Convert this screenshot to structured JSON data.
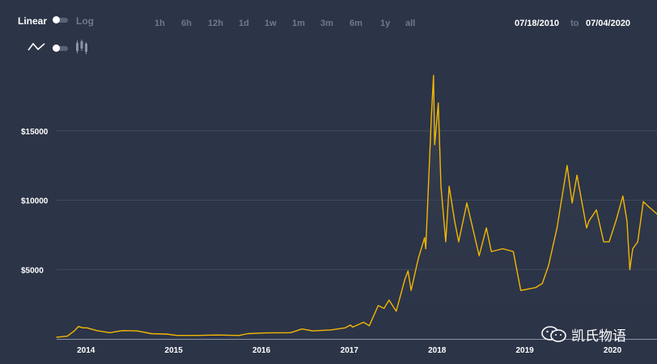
{
  "toolbar": {
    "scale_linear": "Linear",
    "scale_log": "Log",
    "ranges": [
      "1h",
      "6h",
      "12h",
      "1d",
      "1w",
      "1m",
      "3m",
      "6m",
      "1y",
      "all"
    ],
    "date_from": "07/18/2010",
    "date_to_word": "to",
    "date_to": "07/04/2020"
  },
  "watermark": {
    "text": "凯氏物语"
  },
  "colors": {
    "background": "#2c3447",
    "line": "#f2b705",
    "grid": "#424a5e",
    "muted": "#6f7890"
  },
  "chart_data": {
    "type": "line",
    "y_scale": "linear",
    "grid": true,
    "ylim": [
      0,
      20000
    ],
    "y_ticks": [
      5000,
      10000,
      15000
    ],
    "y_tick_labels": [
      "$5000",
      "$10000",
      "$15000"
    ],
    "x_tick_labels": [
      "2014",
      "2015",
      "2016",
      "2017",
      "2018",
      "2019",
      "2020"
    ],
    "x_ticks": [
      "2014-01-01",
      "2015-01-01",
      "2016-01-01",
      "2017-01-01",
      "2018-01-01",
      "2019-01-01",
      "2020-01-01"
    ],
    "xlim": [
      "2013-09-01",
      "2020-07-04"
    ],
    "series": [
      {
        "x": [
          "2013-09-01",
          "2013-10-15",
          "2013-11-15",
          "2013-12-01",
          "2013-12-18",
          "2014-01-05",
          "2014-02-15",
          "2014-04-10",
          "2014-06-01",
          "2014-08-01",
          "2014-10-01",
          "2014-12-01",
          "2015-01-15",
          "2015-04-01",
          "2015-07-01",
          "2015-10-01",
          "2015-11-05",
          "2016-01-15",
          "2016-05-01",
          "2016-06-18",
          "2016-08-01",
          "2016-10-15",
          "2016-12-15",
          "2017-01-05",
          "2017-01-15",
          "2017-03-01",
          "2017-03-25",
          "2017-05-01",
          "2017-05-25",
          "2017-06-15",
          "2017-07-15",
          "2017-08-20",
          "2017-09-02",
          "2017-09-15",
          "2017-10-15",
          "2017-11-10",
          "2017-11-15",
          "2017-12-08",
          "2017-12-17",
          "2017-12-22",
          "2018-01-06",
          "2018-01-17",
          "2018-02-06",
          "2018-02-20",
          "2018-03-15",
          "2018-04-01",
          "2018-05-05",
          "2018-06-25",
          "2018-07-25",
          "2018-08-15",
          "2018-10-01",
          "2018-11-14",
          "2018-12-15",
          "2019-01-15",
          "2019-02-15",
          "2019-03-15",
          "2019-04-10",
          "2019-05-15",
          "2019-06-26",
          "2019-07-17",
          "2019-08-06",
          "2019-09-15",
          "2019-09-25",
          "2019-10-26",
          "2019-11-25",
          "2019-12-18",
          "2020-01-15",
          "2020-02-13",
          "2020-03-01",
          "2020-03-13",
          "2020-03-25",
          "2020-04-15",
          "2020-05-08",
          "2020-06-01",
          "2020-06-15",
          "2020-07-04"
        ],
        "y": [
          120,
          200,
          600,
          900,
          800,
          800,
          600,
          450,
          600,
          580,
          380,
          350,
          250,
          250,
          280,
          250,
          380,
          430,
          450,
          720,
          580,
          650,
          800,
          1000,
          850,
          1200,
          950,
          2400,
          2200,
          2800,
          2000,
          4300,
          4900,
          3500,
          5800,
          7300,
          6500,
          16000,
          19000,
          14000,
          17000,
          11000,
          7000,
          11000,
          8500,
          7000,
          9800,
          6000,
          8000,
          6300,
          6500,
          6300,
          3500,
          3600,
          3700,
          4000,
          5300,
          8000,
          12500,
          9800,
          11800,
          8000,
          8500,
          9300,
          7000,
          7000,
          8500,
          10300,
          8500,
          5000,
          6500,
          7000,
          9900,
          9500,
          9300,
          9000
        ]
      }
    ]
  }
}
